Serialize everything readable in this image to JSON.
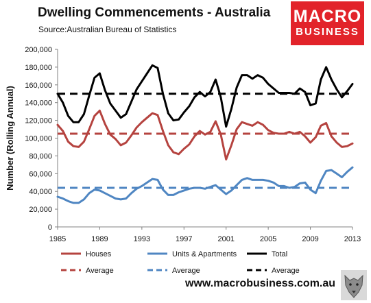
{
  "header": {
    "title": "Dwelling Commencements - Australia",
    "source": "Source:Australian Bureau of Statistics"
  },
  "logo": {
    "line1": "MACRO",
    "line2": "BUSINESS"
  },
  "footer": {
    "website": "www.macrobusiness.com.au"
  },
  "colors": {
    "houses": "#b5433f",
    "units": "#4f86c2",
    "total": "#000000",
    "logo_red": "#e2232a"
  },
  "chart_data": {
    "type": "line",
    "title": "Dwelling Commencements - Australia",
    "ylabel": "Number (Rolling Annual)",
    "xlabel": "",
    "ylim": [
      0,
      200000
    ],
    "xlim": [
      1985,
      2013
    ],
    "yticks": [
      0,
      20000,
      40000,
      60000,
      80000,
      100000,
      120000,
      140000,
      160000,
      180000,
      200000
    ],
    "ytick_labels": [
      "0",
      "20,000",
      "40,000",
      "60,000",
      "80,000",
      "100,000",
      "120,000",
      "140,000",
      "160,000",
      "180,000",
      "200,000"
    ],
    "xticks": [
      1985,
      1989,
      1993,
      1997,
      2001,
      2005,
      2009,
      2013
    ],
    "xtick_labels": [
      "1985",
      "1989",
      "1993",
      "1997",
      "2001",
      "2005",
      "2009",
      "2013"
    ],
    "grid": false,
    "legend_position": "bottom",
    "series": [
      {
        "name": "Houses",
        "color": "#b5433f",
        "style": "solid",
        "x": [
          1985,
          1985.5,
          1986,
          1986.5,
          1987,
          1987.5,
          1988,
          1988.5,
          1989,
          1989.5,
          1990,
          1990.5,
          1991,
          1991.5,
          1992,
          1992.5,
          1993,
          1993.5,
          1994,
          1994.5,
          1995,
          1995.5,
          1996,
          1996.5,
          1997,
          1997.5,
          1998,
          1998.5,
          1999,
          1999.5,
          2000,
          2000.5,
          2001,
          2001.5,
          2002,
          2002.5,
          2003,
          2003.5,
          2004,
          2004.5,
          2005,
          2005.5,
          2006,
          2006.5,
          2007,
          2007.5,
          2008,
          2008.5,
          2009,
          2009.5,
          2010,
          2010.5,
          2011,
          2011.5,
          2012,
          2012.5,
          2013
        ],
        "y": [
          115000,
          108000,
          96000,
          91000,
          90000,
          96000,
          110000,
          125000,
          131000,
          116000,
          104000,
          99000,
          92000,
          95000,
          103000,
          112000,
          118000,
          123000,
          128000,
          126000,
          108000,
          92000,
          84000,
          82000,
          88000,
          93000,
          102000,
          108000,
          104000,
          107000,
          119000,
          104000,
          76000,
          92000,
          110000,
          118000,
          116000,
          114000,
          118000,
          115000,
          109000,
          106000,
          105000,
          105000,
          107000,
          105000,
          107000,
          102000,
          95000,
          101000,
          114000,
          117000,
          102000,
          95000,
          90000,
          91000,
          94000
        ]
      },
      {
        "name": "Units & Apartments",
        "color": "#4f86c2",
        "style": "solid",
        "x": [
          1985,
          1985.5,
          1986,
          1986.5,
          1987,
          1987.5,
          1988,
          1988.5,
          1989,
          1989.5,
          1990,
          1990.5,
          1991,
          1991.5,
          1992,
          1992.5,
          1993,
          1993.5,
          1994,
          1994.5,
          1995,
          1995.5,
          1996,
          1996.5,
          1997,
          1997.5,
          1998,
          1998.5,
          1999,
          1999.5,
          2000,
          2000.5,
          2001,
          2001.5,
          2002,
          2002.5,
          2003,
          2003.5,
          2004,
          2004.5,
          2005,
          2005.5,
          2006,
          2006.5,
          2007,
          2007.5,
          2008,
          2008.5,
          2009,
          2009.5,
          2010,
          2010.5,
          2011,
          2011.5,
          2012,
          2012.5,
          2013
        ],
        "y": [
          34000,
          32000,
          29000,
          27000,
          27000,
          31000,
          38000,
          42000,
          41000,
          38000,
          35000,
          32000,
          31000,
          32000,
          38000,
          43000,
          46000,
          50000,
          54000,
          53000,
          42000,
          36000,
          36000,
          39000,
          41000,
          43000,
          44000,
          44000,
          43000,
          45000,
          47000,
          42000,
          37000,
          41000,
          47000,
          53000,
          55000,
          53000,
          53000,
          53000,
          52000,
          50000,
          46000,
          46000,
          44000,
          45000,
          49000,
          50000,
          42000,
          38000,
          52000,
          63000,
          64000,
          60000,
          56000,
          62000,
          67000
        ]
      },
      {
        "name": "Total",
        "color": "#000000",
        "style": "solid",
        "x": [
          1985,
          1985.5,
          1986,
          1986.5,
          1987,
          1987.5,
          1988,
          1988.5,
          1989,
          1989.5,
          1990,
          1990.5,
          1991,
          1991.5,
          1992,
          1992.5,
          1993,
          1993.5,
          1994,
          1994.5,
          1995,
          1995.5,
          1996,
          1996.5,
          1997,
          1997.5,
          1998,
          1998.5,
          1999,
          1999.5,
          2000,
          2000.5,
          2001,
          2001.5,
          2002,
          2002.5,
          2003,
          2003.5,
          2004,
          2004.5,
          2005,
          2005.5,
          2006,
          2006.5,
          2007,
          2007.5,
          2008,
          2008.5,
          2009,
          2009.5,
          2010,
          2010.5,
          2011,
          2011.5,
          2012,
          2012.5,
          2013
        ],
        "y": [
          150000,
          140000,
          125000,
          118000,
          118000,
          127000,
          148000,
          168000,
          173000,
          154000,
          139000,
          131000,
          123000,
          127000,
          141000,
          155000,
          164000,
          173000,
          182000,
          179000,
          150000,
          128000,
          120000,
          121000,
          129000,
          136000,
          146000,
          152000,
          147000,
          152000,
          166000,
          146000,
          113000,
          133000,
          157000,
          171000,
          171000,
          167000,
          171000,
          168000,
          161000,
          156000,
          151000,
          151000,
          151000,
          150000,
          156000,
          152000,
          137000,
          139000,
          166000,
          180000,
          166000,
          155000,
          146000,
          153000,
          161000
        ]
      },
      {
        "name": "Average",
        "color": "#b5433f",
        "style": "dashed",
        "x": [
          1985,
          2013
        ],
        "y": [
          105000,
          105000
        ]
      },
      {
        "name": "Average",
        "color": "#4f86c2",
        "style": "dashed",
        "x": [
          1985,
          2013
        ],
        "y": [
          44000,
          44000
        ]
      },
      {
        "name": "Average",
        "color": "#000000",
        "style": "dashed",
        "x": [
          1985,
          2013
        ],
        "y": [
          150000,
          150000
        ]
      }
    ]
  }
}
